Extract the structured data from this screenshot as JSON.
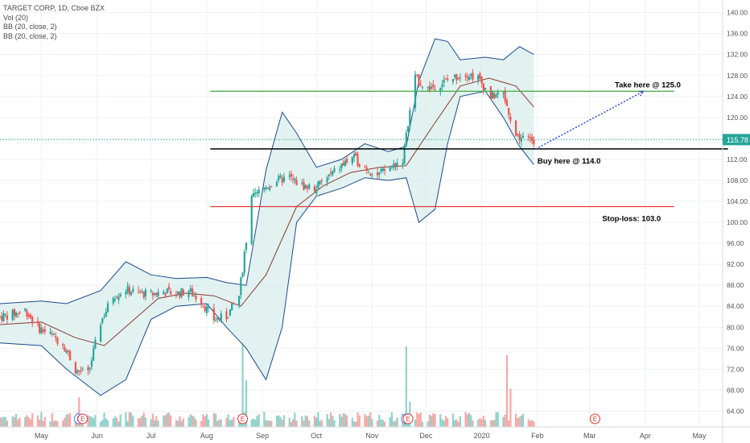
{
  "legend": {
    "symbol": "TARGET CORP, 1D, Cboe BZX",
    "vol": "Vol (20)",
    "bb1": "BB (20, close, 2)",
    "bb2": "BB (20, close, 2)"
  },
  "colors": {
    "up": "#26a69a",
    "down": "#ef5350",
    "band_fill": "#d8eeec",
    "band_line": "#1e4a8c",
    "basis": "#8b3a2e",
    "take_line": "#4caf50",
    "buy_line": "#000000",
    "stop_line": "#e53935",
    "projection": "#1e3fcf",
    "price_badge": "#26a69a"
  },
  "chart_data": {
    "type": "candlestick",
    "title": "TARGET CORP, 1D, Cboe BZX",
    "y_axis": {
      "ticks": [
        64.0,
        68.0,
        72.0,
        76.0,
        80.0,
        84.0,
        88.0,
        92.0,
        96.0,
        100.0,
        104.0,
        108.0,
        112.0,
        116.0,
        120.0,
        124.0,
        128.0,
        132.0,
        136.0,
        140.0
      ],
      "tick_labels": [
        "64.00",
        "68.00",
        "72.00",
        "76.00",
        "80.00",
        "84.00",
        "88.00",
        "92.00",
        "96.00",
        "100.00",
        "104.00",
        "108.00",
        "112.00",
        "116.00",
        "120.00",
        "124.00",
        "128.00",
        "132.00",
        "136.00",
        "140.00"
      ],
      "range": [
        61.0,
        142.4
      ],
      "position": "right"
    },
    "x_axis": {
      "labels": [
        "May",
        "Jun",
        "Jul",
        "Aug",
        "Sep",
        "Oct",
        "Nov",
        "Dec",
        "2020",
        "Feb",
        "Mar",
        "Apr",
        "May"
      ],
      "label_dates": [
        "2019-05-01",
        "2019-06-01",
        "2019-07-01",
        "2019-08-01",
        "2019-09-01",
        "2019-10-01",
        "2019-11-01",
        "2019-12-01",
        "2020-01-01",
        "2020-02-01",
        "2020-03-01",
        "2020-04-01",
        "2020-05-01"
      ],
      "range": [
        "2019-04-08",
        "2020-05-14"
      ]
    },
    "last_price": 115.78,
    "last_price_label": "115.78",
    "price_path": [
      {
        "date": "2019-04-08",
        "close": 82.0
      },
      {
        "date": "2019-04-15",
        "close": 82.5
      },
      {
        "date": "2019-04-22",
        "close": 83.3
      },
      {
        "date": "2019-04-29",
        "close": 80.0
      },
      {
        "date": "2019-05-06",
        "close": 78.6
      },
      {
        "date": "2019-05-13",
        "close": 77.0
      },
      {
        "date": "2019-05-20",
        "close": 72.0
      },
      {
        "date": "2019-05-27",
        "close": 71.0
      },
      {
        "date": "2019-06-03",
        "close": 81.0
      },
      {
        "date": "2019-06-10",
        "close": 86.0
      },
      {
        "date": "2019-06-17",
        "close": 87.2
      },
      {
        "date": "2019-06-24",
        "close": 86.5
      },
      {
        "date": "2019-07-01",
        "close": 86.3
      },
      {
        "date": "2019-07-08",
        "close": 86.8
      },
      {
        "date": "2019-07-15",
        "close": 86.4
      },
      {
        "date": "2019-07-22",
        "close": 87.0
      },
      {
        "date": "2019-07-29",
        "close": 85.0
      },
      {
        "date": "2019-08-05",
        "close": 81.5
      },
      {
        "date": "2019-08-12",
        "close": 82.0
      },
      {
        "date": "2019-08-19",
        "close": 86.0
      },
      {
        "date": "2019-08-26",
        "close": 104.5
      },
      {
        "date": "2019-09-02",
        "close": 106.5
      },
      {
        "date": "2019-09-09",
        "close": 108.0
      },
      {
        "date": "2019-09-16",
        "close": 108.5
      },
      {
        "date": "2019-09-23",
        "close": 107.0
      },
      {
        "date": "2019-09-30",
        "close": 106.5
      },
      {
        "date": "2019-10-07",
        "close": 108.5
      },
      {
        "date": "2019-10-14",
        "close": 110.5
      },
      {
        "date": "2019-10-21",
        "close": 112.5
      },
      {
        "date": "2019-10-28",
        "close": 110.5
      },
      {
        "date": "2019-11-04",
        "close": 109.0
      },
      {
        "date": "2019-11-11",
        "close": 110.5
      },
      {
        "date": "2019-11-18",
        "close": 112.0
      },
      {
        "date": "2019-11-25",
        "close": 127.5
      },
      {
        "date": "2019-12-02",
        "close": 125.5
      },
      {
        "date": "2019-12-09",
        "close": 126.5
      },
      {
        "date": "2019-12-16",
        "close": 127.5
      },
      {
        "date": "2019-12-23",
        "close": 128.5
      },
      {
        "date": "2019-12-30",
        "close": 127.5
      },
      {
        "date": "2020-01-06",
        "close": 124.0
      },
      {
        "date": "2020-01-13",
        "close": 124.5
      },
      {
        "date": "2020-01-20",
        "close": 116.5
      },
      {
        "date": "2020-01-27",
        "close": 115.78
      }
    ],
    "bands_upper": [
      {
        "date": "2019-04-08",
        "v": 84.5
      },
      {
        "date": "2019-05-01",
        "v": 85.0
      },
      {
        "date": "2019-05-15",
        "v": 84.5
      },
      {
        "date": "2019-06-03",
        "v": 87.0
      },
      {
        "date": "2019-06-17",
        "v": 92.5
      },
      {
        "date": "2019-07-01",
        "v": 90.0
      },
      {
        "date": "2019-07-15",
        "v": 89.3
      },
      {
        "date": "2019-08-01",
        "v": 89.5
      },
      {
        "date": "2019-08-12",
        "v": 88.5
      },
      {
        "date": "2019-08-23",
        "v": 88.0
      },
      {
        "date": "2019-09-03",
        "v": 110.0
      },
      {
        "date": "2019-09-12",
        "v": 121.0
      },
      {
        "date": "2019-09-20",
        "v": 117.0
      },
      {
        "date": "2019-10-01",
        "v": 110.5
      },
      {
        "date": "2019-10-15",
        "v": 112.0
      },
      {
        "date": "2019-10-28",
        "v": 115.0
      },
      {
        "date": "2019-11-10",
        "v": 113.5
      },
      {
        "date": "2019-11-20",
        "v": 114.5
      },
      {
        "date": "2019-11-27",
        "v": 127.0
      },
      {
        "date": "2019-12-06",
        "v": 135.0
      },
      {
        "date": "2019-12-13",
        "v": 134.5
      },
      {
        "date": "2019-12-20",
        "v": 131.0
      },
      {
        "date": "2020-01-03",
        "v": 131.5
      },
      {
        "date": "2020-01-13",
        "v": 131.0
      },
      {
        "date": "2020-01-22",
        "v": 133.5
      },
      {
        "date": "2020-01-30",
        "v": 132.0
      }
    ],
    "bands_lower": [
      {
        "date": "2019-04-08",
        "v": 77.0
      },
      {
        "date": "2019-05-01",
        "v": 76.5
      },
      {
        "date": "2019-05-15",
        "v": 72.0
      },
      {
        "date": "2019-06-03",
        "v": 67.0
      },
      {
        "date": "2019-06-17",
        "v": 70.0
      },
      {
        "date": "2019-07-01",
        "v": 81.5
      },
      {
        "date": "2019-07-15",
        "v": 84.0
      },
      {
        "date": "2019-08-01",
        "v": 84.5
      },
      {
        "date": "2019-08-12",
        "v": 80.0
      },
      {
        "date": "2019-08-23",
        "v": 76.0
      },
      {
        "date": "2019-09-03",
        "v": 70.0
      },
      {
        "date": "2019-09-12",
        "v": 80.0
      },
      {
        "date": "2019-09-20",
        "v": 100.0
      },
      {
        "date": "2019-10-01",
        "v": 105.0
      },
      {
        "date": "2019-10-15",
        "v": 106.5
      },
      {
        "date": "2019-10-28",
        "v": 108.5
      },
      {
        "date": "2019-11-10",
        "v": 108.0
      },
      {
        "date": "2019-11-20",
        "v": 108.5
      },
      {
        "date": "2019-11-27",
        "v": 100.0
      },
      {
        "date": "2019-12-06",
        "v": 102.5
      },
      {
        "date": "2019-12-13",
        "v": 115.0
      },
      {
        "date": "2019-12-20",
        "v": 124.0
      },
      {
        "date": "2020-01-03",
        "v": 125.0
      },
      {
        "date": "2020-01-13",
        "v": 120.0
      },
      {
        "date": "2020-01-22",
        "v": 114.5
      },
      {
        "date": "2020-01-30",
        "v": 111.0
      }
    ],
    "basis": [
      {
        "date": "2019-04-08",
        "v": 80.5
      },
      {
        "date": "2019-05-01",
        "v": 81.0
      },
      {
        "date": "2019-05-20",
        "v": 78.0
      },
      {
        "date": "2019-06-05",
        "v": 76.5
      },
      {
        "date": "2019-06-20",
        "v": 81.0
      },
      {
        "date": "2019-07-05",
        "v": 85.5
      },
      {
        "date": "2019-07-20",
        "v": 86.5
      },
      {
        "date": "2019-08-05",
        "v": 86.0
      },
      {
        "date": "2019-08-20",
        "v": 84.0
      },
      {
        "date": "2019-09-03",
        "v": 90.0
      },
      {
        "date": "2019-09-20",
        "v": 103.0
      },
      {
        "date": "2019-10-05",
        "v": 107.0
      },
      {
        "date": "2019-10-20",
        "v": 109.5
      },
      {
        "date": "2019-11-05",
        "v": 110.5
      },
      {
        "date": "2019-11-20",
        "v": 110.8
      },
      {
        "date": "2019-12-05",
        "v": 118.5
      },
      {
        "date": "2019-12-20",
        "v": 126.0
      },
      {
        "date": "2020-01-05",
        "v": 127.5
      },
      {
        "date": "2020-01-20",
        "v": 126.0
      },
      {
        "date": "2020-01-30",
        "v": 122.0
      }
    ],
    "volume_spikes": [
      {
        "date": "2019-05-22",
        "rel": 0.35,
        "dir": "down"
      },
      {
        "date": "2019-08-21",
        "rel": 1.0,
        "dir": "up"
      },
      {
        "date": "2019-08-23",
        "rel": 0.55,
        "dir": "up"
      },
      {
        "date": "2019-11-20",
        "rel": 0.95,
        "dir": "up"
      },
      {
        "date": "2019-11-22",
        "rel": 0.3,
        "dir": "up"
      },
      {
        "date": "2020-01-15",
        "rel": 0.85,
        "dir": "down"
      },
      {
        "date": "2020-01-17",
        "rel": 0.45,
        "dir": "down"
      }
    ],
    "earnings_markers": [
      {
        "date": "2019-05-22",
        "label": "D",
        "kind": "dividend"
      },
      {
        "date": "2019-05-24",
        "label": "E",
        "kind": "earnings"
      },
      {
        "date": "2019-08-21",
        "label": "E",
        "kind": "earnings"
      },
      {
        "date": "2019-11-20",
        "label": "D",
        "kind": "dividend"
      },
      {
        "date": "2019-11-21",
        "label": "E",
        "kind": "earnings"
      },
      {
        "date": "2020-03-04",
        "label": "E",
        "kind": "earnings-upcoming"
      }
    ],
    "horizontal_levels": [
      {
        "name": "take",
        "price": 125.0,
        "from": "2019-08-03",
        "to": "2020-04-17",
        "label": "Take here @ 125.0"
      },
      {
        "name": "buy",
        "price": 114.0,
        "from": "2019-08-03",
        "to": "2020-05-17",
        "label": "Buy here @ 114.0"
      },
      {
        "name": "stop",
        "price": 103.0,
        "from": "2019-08-03",
        "to": "2020-04-17",
        "label": "Stop-loss: 103.0"
      }
    ],
    "projection": {
      "from": {
        "date": "2020-01-31",
        "price": 114.0
      },
      "to": {
        "date": "2020-03-31",
        "price": 125.0
      }
    },
    "grid": true,
    "legend_position": "top-left"
  }
}
